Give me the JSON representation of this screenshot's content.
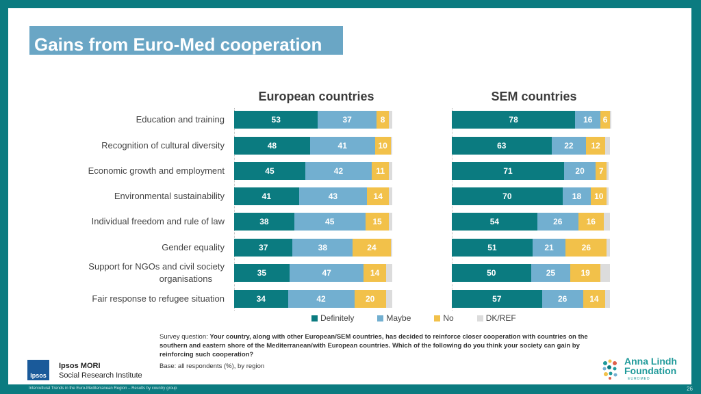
{
  "title": "Gains from Euro-Med cooperation",
  "colors": {
    "definitely": "#0b7b80",
    "maybe": "#72afd0",
    "no": "#f2c14a",
    "dkref": "#dcdcdc",
    "definitely_text": "#ffffff",
    "maybe_text": "#ffffff",
    "no_text": "#ffffff"
  },
  "chart_data": [
    {
      "type": "bar",
      "orientation": "horizontal-stacked",
      "title": "European countries",
      "categories": [
        "Education and training",
        "Recognition of cultural diversity",
        "Economic growth and employment",
        "Environmental sustainability",
        "Individual freedom and rule of law",
        "Gender equality",
        "Support for NGOs and civil society organisations",
        "Fair response to refugee situation"
      ],
      "series": [
        {
          "name": "Definitely",
          "values": [
            53,
            48,
            45,
            41,
            38,
            37,
            35,
            34
          ]
        },
        {
          "name": "Maybe",
          "values": [
            37,
            41,
            42,
            43,
            45,
            38,
            47,
            42
          ]
        },
        {
          "name": "No",
          "values": [
            8,
            10,
            11,
            14,
            15,
            24,
            14,
            20
          ]
        },
        {
          "name": "DK/REF",
          "values": [
            2,
            1,
            2,
            2,
            2,
            1,
            4,
            4
          ]
        }
      ],
      "xlim": [
        0,
        100
      ]
    },
    {
      "type": "bar",
      "orientation": "horizontal-stacked",
      "title": "SEM countries",
      "categories": [
        "Education and training",
        "Recognition of cultural diversity",
        "Economic growth and employment",
        "Environmental sustainability",
        "Individual freedom and rule of law",
        "Gender equality",
        "Support for NGOs and civil society organisations",
        "Fair response to refugee situation"
      ],
      "series": [
        {
          "name": "Definitely",
          "values": [
            78,
            63,
            71,
            70,
            54,
            51,
            50,
            57
          ]
        },
        {
          "name": "Maybe",
          "values": [
            16,
            22,
            20,
            18,
            26,
            21,
            25,
            26
          ]
        },
        {
          "name": "No",
          "values": [
            6,
            12,
            7,
            10,
            16,
            26,
            19,
            14
          ]
        },
        {
          "name": "DK/REF",
          "values": [
            1,
            3,
            1,
            1,
            4,
            2,
            6,
            3
          ]
        }
      ],
      "xlim": [
        0,
        100
      ]
    }
  ],
  "category_labels": [
    [
      "Education and training"
    ],
    [
      "Recognition of cultural diversity"
    ],
    [
      "Economic growth and employment"
    ],
    [
      "Environmental sustainability"
    ],
    [
      "Individual freedom and rule of law"
    ],
    [
      "Gender equality"
    ],
    [
      "Support for NGOs and civil society",
      "organisations"
    ],
    [
      "Fair response to refugee situation"
    ]
  ],
  "legend": [
    "Definitely",
    "Maybe",
    "No",
    "DK/REF"
  ],
  "note": {
    "prefix": "Survey question: ",
    "question": "Your country, along with other European/SEM countries, has decided to reinforce closer cooperation with countries on the southern and eastern shore of the Mediterranean/with European countries. Which of the following do you think your society can gain by reinforcing such cooperation?",
    "base": "Base: all respondents (%), by region"
  },
  "ipsos": {
    "logo": "Ipsos",
    "name_line1": "Ipsos MORI",
    "name_line2": "Social Research Institute"
  },
  "alf": {
    "line1": "Anna Lindh",
    "line2": "Foundation",
    "tagline": "EUROMED"
  },
  "footer": "Intercultural Trends in the Euro-Mediterranean Region – Results by country group",
  "page_number": "26"
}
